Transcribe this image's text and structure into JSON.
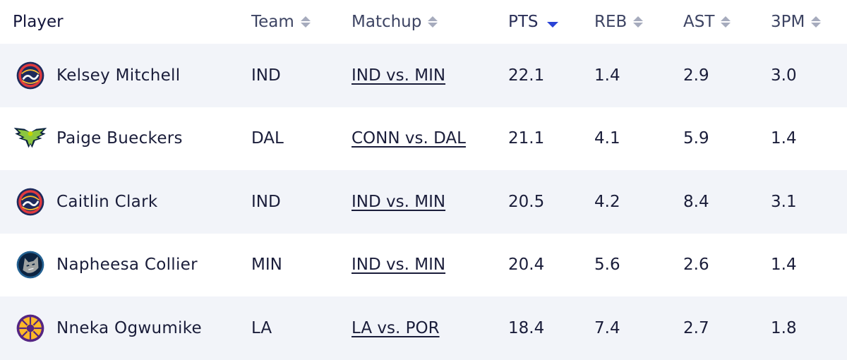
{
  "headers": {
    "player": "Player",
    "team": "Team",
    "matchup": "Matchup",
    "pts": "PTS",
    "reb": "REB",
    "ast": "AST",
    "threepm": "3PM"
  },
  "sort": {
    "column": "PTS",
    "direction": "descending"
  },
  "rows": [
    {
      "logo": "indiana-fever-logo",
      "name": "Kelsey Mitchell",
      "team": "IND",
      "matchup": "IND vs. MIN",
      "pts": "22.1",
      "reb": "1.4",
      "ast": "2.9",
      "threepm": "3.0"
    },
    {
      "logo": "dallas-wings-logo",
      "name": "Paige Bueckers",
      "team": "DAL",
      "matchup": "CONN vs. DAL",
      "pts": "21.1",
      "reb": "4.1",
      "ast": "5.9",
      "threepm": "1.4"
    },
    {
      "logo": "indiana-fever-logo",
      "name": "Caitlin Clark",
      "team": "IND",
      "matchup": "IND vs. MIN",
      "pts": "20.5",
      "reb": "4.2",
      "ast": "8.4",
      "threepm": "3.1"
    },
    {
      "logo": "minnesota-lynx-logo",
      "name": "Napheesa Collier",
      "team": "MIN",
      "matchup": "IND vs. MIN",
      "pts": "20.4",
      "reb": "5.6",
      "ast": "2.6",
      "threepm": "1.4"
    },
    {
      "logo": "los-angeles-sparks-logo",
      "name": "Nneka Ogwumike",
      "team": "LA",
      "matchup": "LA vs. POR",
      "pts": "18.4",
      "reb": "7.4",
      "ast": "2.7",
      "threepm": "1.8"
    }
  ],
  "colors": {
    "row_alt": "#f2f4f9",
    "text": "#1a1d3a",
    "header_text": "#3d4463",
    "sort_active": "#2b44d6",
    "sort_inactive": "#a6abbd"
  }
}
